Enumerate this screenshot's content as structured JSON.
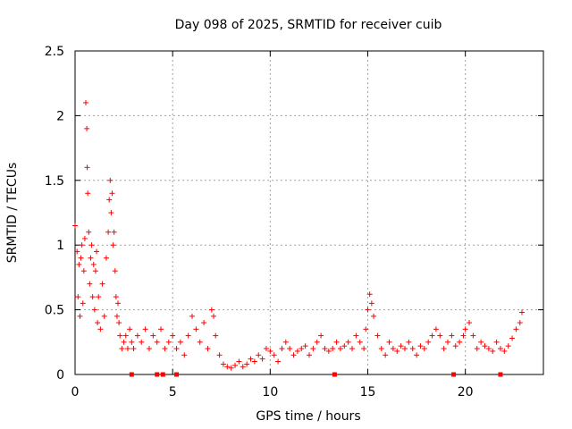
{
  "chart_data": {
    "type": "scatter",
    "title": "Day 098 of 2025, SRMTID for receiver cuib",
    "xlabel": "GPS time / hours",
    "ylabel": "SRMTID / TECUs",
    "xlim": [
      0,
      24
    ],
    "ylim": [
      0,
      2.5
    ],
    "xticks": [
      0,
      5,
      10,
      15,
      20
    ],
    "yticks": [
      0,
      0.5,
      1,
      1.5,
      2,
      2.5
    ],
    "xtick_labels": [
      "0",
      "5",
      "10",
      "15",
      "20"
    ],
    "ytick_labels": [
      "0",
      "0.5",
      "1",
      "1.5",
      "2",
      "2.5"
    ],
    "grid": true,
    "marker": "+",
    "series": [
      {
        "name": "SRMTID",
        "color": "#ff0000",
        "x": [
          0.0,
          0.1,
          0.15,
          0.2,
          0.25,
          0.3,
          0.35,
          0.4,
          0.45,
          0.5,
          0.55,
          0.6,
          0.62,
          0.65,
          0.7,
          0.75,
          0.8,
          0.85,
          0.9,
          0.95,
          1.0,
          1.05,
          1.1,
          1.15,
          1.2,
          1.3,
          1.4,
          1.5,
          1.6,
          1.7,
          1.75,
          1.8,
          1.85,
          1.9,
          1.95,
          2.0,
          2.05,
          2.1,
          2.15,
          2.2,
          2.25,
          2.3,
          2.4,
          2.5,
          2.6,
          2.7,
          2.8,
          2.9,
          3.0,
          3.2,
          3.4,
          3.6,
          3.8,
          4.0,
          4.2,
          4.4,
          4.6,
          4.8,
          5.0,
          5.2,
          5.4,
          5.6,
          5.8,
          6.0,
          6.2,
          6.4,
          6.6,
          6.8,
          7.0,
          7.1,
          7.2,
          7.4,
          7.6,
          7.8,
          8.0,
          8.2,
          8.4,
          8.6,
          8.8,
          9.0,
          9.2,
          9.4,
          9.6,
          9.8,
          10.0,
          10.2,
          10.4,
          10.6,
          10.8,
          11.0,
          11.2,
          11.4,
          11.6,
          11.8,
          12.0,
          12.2,
          12.4,
          12.6,
          12.8,
          13.0,
          13.2,
          13.4,
          13.6,
          13.8,
          14.0,
          14.2,
          14.4,
          14.6,
          14.8,
          14.9,
          15.0,
          15.1,
          15.2,
          15.3,
          15.5,
          15.7,
          15.9,
          16.1,
          16.3,
          16.5,
          16.7,
          16.9,
          17.1,
          17.3,
          17.5,
          17.7,
          17.9,
          18.1,
          18.3,
          18.5,
          18.7,
          18.9,
          19.1,
          19.3,
          19.5,
          19.7,
          19.9,
          20.0,
          20.2,
          20.4,
          20.6,
          20.8,
          21.0,
          21.2,
          21.4,
          21.6,
          21.8,
          22.0,
          22.2,
          22.4,
          22.6,
          22.8,
          22.9
        ],
        "y": [
          1.15,
          0.95,
          0.6,
          0.85,
          0.45,
          0.9,
          1.0,
          0.55,
          0.8,
          1.05,
          2.1,
          1.9,
          1.6,
          1.4,
          1.1,
          0.7,
          0.9,
          1.0,
          0.6,
          0.85,
          0.5,
          0.8,
          0.95,
          0.4,
          0.6,
          0.35,
          0.7,
          0.45,
          0.9,
          1.1,
          1.35,
          1.5,
          1.25,
          1.4,
          1.0,
          1.1,
          0.8,
          0.6,
          0.45,
          0.55,
          0.4,
          0.3,
          0.2,
          0.25,
          0.3,
          0.2,
          0.35,
          0.25,
          0.2,
          0.3,
          0.25,
          0.35,
          0.2,
          0.3,
          0.25,
          0.35,
          0.2,
          0.25,
          0.3,
          0.2,
          0.25,
          0.15,
          0.3,
          0.45,
          0.35,
          0.25,
          0.4,
          0.2,
          0.5,
          0.45,
          0.3,
          0.15,
          0.08,
          0.06,
          0.05,
          0.07,
          0.1,
          0.06,
          0.08,
          0.12,
          0.1,
          0.15,
          0.12,
          0.2,
          0.18,
          0.15,
          0.1,
          0.2,
          0.25,
          0.2,
          0.15,
          0.18,
          0.2,
          0.22,
          0.15,
          0.2,
          0.25,
          0.3,
          0.2,
          0.18,
          0.2,
          0.25,
          0.2,
          0.22,
          0.25,
          0.2,
          0.3,
          0.25,
          0.2,
          0.35,
          0.5,
          0.62,
          0.55,
          0.45,
          0.3,
          0.2,
          0.15,
          0.25,
          0.2,
          0.18,
          0.22,
          0.2,
          0.25,
          0.2,
          0.15,
          0.22,
          0.2,
          0.25,
          0.3,
          0.35,
          0.3,
          0.2,
          0.25,
          0.3,
          0.22,
          0.25,
          0.3,
          0.35,
          0.4,
          0.3,
          0.2,
          0.25,
          0.22,
          0.2,
          0.18,
          0.25,
          0.2,
          0.18,
          0.22,
          0.28,
          0.35,
          0.4,
          0.48
        ]
      }
    ],
    "baseline_markers": {
      "color": "#ff0000",
      "x": [
        2.9,
        4.2,
        4.5,
        5.2,
        13.3,
        19.4,
        21.8
      ],
      "y": 0
    }
  }
}
